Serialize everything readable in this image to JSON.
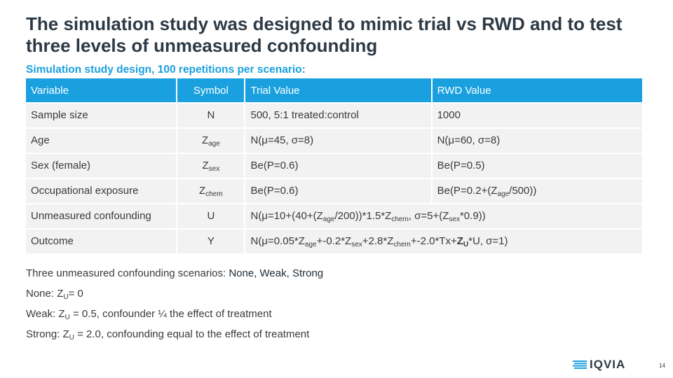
{
  "slide": {
    "title": "The simulation study was designed to mimic trial vs RWD and to test three levels of unmeasured confounding",
    "subtitle": "Simulation study design, 100 repetitions per scenario:",
    "page_number": "14",
    "logo": "IQVIA"
  },
  "table": {
    "headers": [
      "Variable",
      "Symbol",
      "Trial Value",
      "RWD Value"
    ],
    "rows": [
      {
        "variable": "Sample size",
        "symbol": {
          "base": "N",
          "sub": ""
        },
        "trial": [
          {
            "t": "500, 5:1 treated:control"
          }
        ],
        "rwd": [
          {
            "t": "1000"
          }
        ]
      },
      {
        "variable": "Age",
        "symbol": {
          "base": "Z",
          "sub": "age"
        },
        "trial": [
          {
            "t": "N(μ=45, σ=8)"
          }
        ],
        "rwd": [
          {
            "t": "N(μ=60, σ=8)"
          }
        ]
      },
      {
        "variable": "Sex (female)",
        "symbol": {
          "base": "Z",
          "sub": "sex"
        },
        "trial": [
          {
            "t": "Be(P=0.6)"
          }
        ],
        "rwd": [
          {
            "t": "Be(P=0.5)"
          }
        ]
      },
      {
        "variable": "Occupational exposure",
        "symbol": {
          "base": "Z",
          "sub": "chem"
        },
        "trial": [
          {
            "t": "Be(P=0.6)"
          }
        ],
        "rwd": [
          {
            "t": "Be(P=0.2+(Z"
          },
          {
            "t": "age",
            "sub": true
          },
          {
            "t": "/500))"
          }
        ]
      },
      {
        "variable": "Unmeasured confounding",
        "symbol": {
          "base": "U",
          "sub": ""
        },
        "trial": [
          {
            "t": "N(μ=10+(40+(Z"
          },
          {
            "t": "age",
            "sub": true
          },
          {
            "t": "/200))*1.5*Z"
          },
          {
            "t": "chem",
            "sub": true
          },
          {
            "t": ", σ=5+(Z"
          },
          {
            "t": "sex",
            "sub": true
          },
          {
            "t": "*0.9))"
          }
        ],
        "rwd": []
      },
      {
        "variable": "Outcome",
        "symbol": {
          "base": "Y",
          "sub": ""
        },
        "trial": [
          {
            "t": "N(μ=0.05*Z"
          },
          {
            "t": "age",
            "sub": true
          },
          {
            "t": "+-0.2*Z"
          },
          {
            "t": "sex",
            "sub": true
          },
          {
            "t": "+2.8*Z"
          },
          {
            "t": "chem",
            "sub": true
          },
          {
            "t": "+-2.0*Tx+"
          },
          {
            "t": "Z",
            "bold": true
          },
          {
            "t": "U",
            "sub": true,
            "bold": true
          },
          {
            "t": "*U, σ=1)"
          }
        ],
        "rwd": []
      }
    ]
  },
  "scenarios": {
    "intro_prefix": "Three unmeasured confounding scenarios: ",
    "intro_values": "None, Weak, Strong",
    "items": [
      {
        "prefix": "None: Z",
        "sub": "U",
        "rest": "= 0"
      },
      {
        "prefix": "Weak: Z",
        "sub": "U",
        "rest": " = 0.5, confounder ¼ the effect of treatment"
      },
      {
        "prefix": "Strong: Z",
        "sub": "U",
        "rest": " = 2.0, confounding equal to the effect of treatment"
      }
    ]
  },
  "colors": {
    "header_bg": "#1aa0df",
    "row_bg": "#f2f2f2",
    "title": "#2d3a45",
    "accent": "#1aa0df"
  }
}
